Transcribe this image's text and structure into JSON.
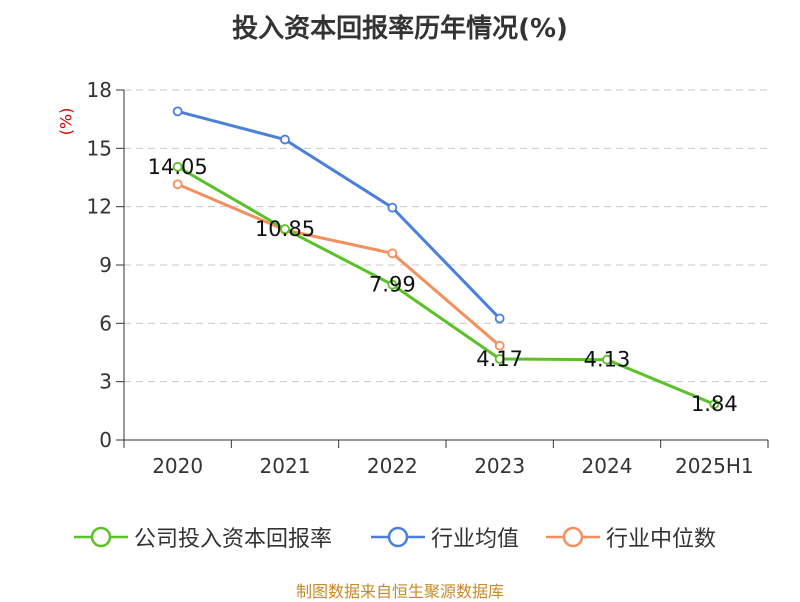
{
  "title": "投入资本回报率历年情况(%)",
  "source": "制图数据来自恒生聚源数据库",
  "chart_data": {
    "type": "line",
    "title": "投入资本回报率历年情况(%)",
    "ylabel": "(%)",
    "xlabel": "",
    "categories": [
      "2020",
      "2021",
      "2022",
      "2023",
      "2024",
      "2025H1"
    ],
    "ylim": [
      0,
      18
    ],
    "yticks": [
      0,
      3,
      6,
      9,
      12,
      15,
      18
    ],
    "grid": true,
    "legend_position": "bottom",
    "series": [
      {
        "name": "公司投入资本回报率",
        "color": "#5ac228",
        "values": [
          14.05,
          10.85,
          7.99,
          4.17,
          4.13,
          1.84
        ],
        "labels": [
          "14.05",
          "10.85",
          "7.99",
          "4.17",
          "4.13",
          "1.84"
        ]
      },
      {
        "name": "行业均值",
        "color": "#4a7fdc",
        "values": [
          16.9,
          15.45,
          11.95,
          6.25,
          null,
          null
        ]
      },
      {
        "name": "行业中位数",
        "color": "#f58f5d",
        "values": [
          13.15,
          10.8,
          9.6,
          4.85,
          null,
          null
        ]
      }
    ]
  }
}
